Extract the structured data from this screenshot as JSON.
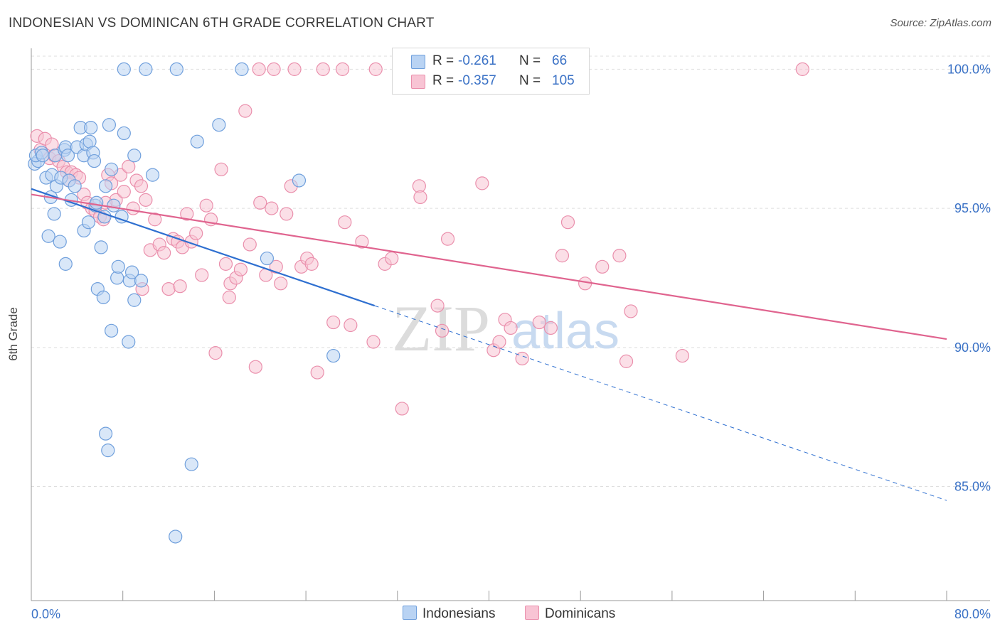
{
  "header": {
    "title": "INDONESIAN VS DOMINICAN 6TH GRADE CORRELATION CHART",
    "source": "Source: ZipAtlas.com"
  },
  "colors": {
    "indonesians_fill": "#b9d3f3",
    "indonesians_stroke": "#6f9fdc",
    "indonesians_line": "#2e6fd0",
    "dominicans_fill": "#f8c4d4",
    "dominicans_stroke": "#ea8fac",
    "dominicans_line": "#e0648f",
    "tick_text": "#3b72c6",
    "grid": "#dedede"
  },
  "legend": {
    "rows": [
      {
        "series": "Indonesians",
        "r_label": "R =",
        "r_value": "-0.261",
        "n_label": "N =",
        "n_value": "66"
      },
      {
        "series": "Dominicans",
        "r_label": "R =",
        "r_value": "-0.357",
        "n_label": "N =",
        "n_value": "105"
      }
    ],
    "bottom": [
      "Indonesians",
      "Dominicans"
    ]
  },
  "watermark": {
    "zip": "ZIP",
    "atlas": "atlas"
  },
  "chart_data": {
    "type": "scatter",
    "title": "INDONESIAN VS DOMINICAN 6TH GRADE CORRELATION CHART",
    "xlabel": "",
    "ylabel": "6th Grade",
    "xlim": [
      0,
      80
    ],
    "ylim": [
      80.9,
      100.7
    ],
    "x_tick_labels": [
      "0.0%",
      "80.0%"
    ],
    "y_ticks": [
      85,
      90,
      95,
      100
    ],
    "y_tick_labels": [
      "85.0%",
      "90.0%",
      "95.0%",
      "100.0%"
    ],
    "grid": "horizontal dashed",
    "legend_position": "top-center",
    "series": [
      {
        "name": "Indonesians",
        "r": -0.261,
        "n": 66,
        "trend": {
          "x0": 0,
          "y0": 95.7,
          "x1": 30,
          "y1": 91.5,
          "dashed_to_x": 80,
          "dashed_to_y": 84.5
        },
        "points": [
          [
            0.3,
            96.6
          ],
          [
            0.6,
            96.7
          ],
          [
            0.4,
            96.9
          ],
          [
            0.9,
            97.0
          ],
          [
            1.0,
            96.9
          ],
          [
            1.3,
            96.1
          ],
          [
            1.8,
            96.2
          ],
          [
            2.1,
            96.9
          ],
          [
            1.7,
            95.4
          ],
          [
            2.2,
            95.8
          ],
          [
            2.6,
            96.1
          ],
          [
            2.9,
            97.1
          ],
          [
            3.0,
            97.2
          ],
          [
            2.0,
            94.8
          ],
          [
            3.2,
            96.9
          ],
          [
            3.3,
            96.0
          ],
          [
            3.5,
            95.3
          ],
          [
            3.8,
            95.8
          ],
          [
            4.0,
            97.2
          ],
          [
            4.3,
            97.9
          ],
          [
            4.6,
            96.9
          ],
          [
            4.8,
            97.3
          ],
          [
            5.1,
            97.4
          ],
          [
            5.2,
            97.9
          ],
          [
            5.4,
            97.0
          ],
          [
            5.5,
            96.7
          ],
          [
            5.6,
            95.1
          ],
          [
            5.7,
            95.2
          ],
          [
            6.1,
            93.6
          ],
          [
            6.4,
            94.7
          ],
          [
            6.5,
            95.8
          ],
          [
            6.8,
            98.0
          ],
          [
            7.0,
            96.4
          ],
          [
            7.2,
            95.1
          ],
          [
            7.5,
            92.5
          ],
          [
            7.6,
            92.9
          ],
          [
            7.9,
            94.7
          ],
          [
            8.1,
            100.0
          ],
          [
            8.1,
            97.7
          ],
          [
            8.5,
            90.2
          ],
          [
            8.6,
            92.4
          ],
          [
            8.8,
            92.7
          ],
          [
            9.0,
            96.9
          ],
          [
            9.0,
            91.7
          ],
          [
            9.6,
            92.4
          ],
          [
            10.0,
            100.0
          ],
          [
            10.6,
            96.2
          ],
          [
            12.7,
            100.0
          ],
          [
            14.5,
            97.4
          ],
          [
            16.4,
            98.0
          ],
          [
            18.4,
            100.0
          ],
          [
            20.6,
            93.2
          ],
          [
            1.5,
            94.0
          ],
          [
            2.5,
            93.8
          ],
          [
            4.6,
            94.2
          ],
          [
            5.0,
            94.5
          ],
          [
            3.0,
            93.0
          ],
          [
            5.8,
            92.1
          ],
          [
            6.3,
            91.8
          ],
          [
            7.0,
            90.6
          ],
          [
            6.5,
            86.9
          ],
          [
            6.7,
            86.3
          ],
          [
            14.0,
            85.8
          ],
          [
            12.6,
            83.2
          ],
          [
            26.4,
            89.7
          ],
          [
            23.4,
            96.0
          ]
        ]
      },
      {
        "name": "Dominicans",
        "r": -0.357,
        "n": 105,
        "trend": {
          "x0": 0,
          "y0": 95.5,
          "x1": 80,
          "y1": 90.3
        },
        "points": [
          [
            0.5,
            97.6
          ],
          [
            0.8,
            97.1
          ],
          [
            1.2,
            97.5
          ],
          [
            1.6,
            96.8
          ],
          [
            2.0,
            96.9
          ],
          [
            2.4,
            96.7
          ],
          [
            2.8,
            96.5
          ],
          [
            3.1,
            96.3
          ],
          [
            3.5,
            96.3
          ],
          [
            3.9,
            96.2
          ],
          [
            4.2,
            96.1
          ],
          [
            4.6,
            95.5
          ],
          [
            4.9,
            95.2
          ],
          [
            5.3,
            95.0
          ],
          [
            5.6,
            94.9
          ],
          [
            6.0,
            94.7
          ],
          [
            6.3,
            94.6
          ],
          [
            6.7,
            96.2
          ],
          [
            7.0,
            95.9
          ],
          [
            7.4,
            95.3
          ],
          [
            7.8,
            96.2
          ],
          [
            8.1,
            95.6
          ],
          [
            8.5,
            96.5
          ],
          [
            8.9,
            95.0
          ],
          [
            9.2,
            96.0
          ],
          [
            9.6,
            95.8
          ],
          [
            10.0,
            95.3
          ],
          [
            10.4,
            93.5
          ],
          [
            10.8,
            94.6
          ],
          [
            11.2,
            93.7
          ],
          [
            11.6,
            93.4
          ],
          [
            12.0,
            92.1
          ],
          [
            12.4,
            93.9
          ],
          [
            12.8,
            93.8
          ],
          [
            13.2,
            93.6
          ],
          [
            13.6,
            94.8
          ],
          [
            14.0,
            93.8
          ],
          [
            14.4,
            94.1
          ],
          [
            14.9,
            92.6
          ],
          [
            15.3,
            95.1
          ],
          [
            15.7,
            94.6
          ],
          [
            16.1,
            89.8
          ],
          [
            16.6,
            96.4
          ],
          [
            17.0,
            93.0
          ],
          [
            17.4,
            92.3
          ],
          [
            17.9,
            92.5
          ],
          [
            18.3,
            92.8
          ],
          [
            18.7,
            98.5
          ],
          [
            19.1,
            93.7
          ],
          [
            19.6,
            89.3
          ],
          [
            20.0,
            95.2
          ],
          [
            20.5,
            92.6
          ],
          [
            21.0,
            95.0
          ],
          [
            21.4,
            92.9
          ],
          [
            21.8,
            92.3
          ],
          [
            22.3,
            94.8
          ],
          [
            22.7,
            95.8
          ],
          [
            23.6,
            92.9
          ],
          [
            24.1,
            93.2
          ],
          [
            24.5,
            93.0
          ],
          [
            25.0,
            89.1
          ],
          [
            25.5,
            100.0
          ],
          [
            26.4,
            90.9
          ],
          [
            27.4,
            94.5
          ],
          [
            27.9,
            90.8
          ],
          [
            28.9,
            93.8
          ],
          [
            29.9,
            90.2
          ],
          [
            30.9,
            93.0
          ],
          [
            31.5,
            93.2
          ],
          [
            32.4,
            87.8
          ],
          [
            33.9,
            95.8
          ],
          [
            34.0,
            95.4
          ],
          [
            35.5,
            91.5
          ],
          [
            35.9,
            90.6
          ],
          [
            36.4,
            93.9
          ],
          [
            38.4,
            100.0
          ],
          [
            39.4,
            95.9
          ],
          [
            40.4,
            89.9
          ],
          [
            40.9,
            90.2
          ],
          [
            41.4,
            91.0
          ],
          [
            41.9,
            90.7
          ],
          [
            42.9,
            89.6
          ],
          [
            44.4,
            90.9
          ],
          [
            45.4,
            90.7
          ],
          [
            46.4,
            93.3
          ],
          [
            46.9,
            94.5
          ],
          [
            48.4,
            92.3
          ],
          [
            49.9,
            92.9
          ],
          [
            51.4,
            93.3
          ],
          [
            52.4,
            91.3
          ],
          [
            52.0,
            89.5
          ],
          [
            56.9,
            89.7
          ],
          [
            67.4,
            100.0
          ],
          [
            19.9,
            100.0
          ],
          [
            21.2,
            100.0
          ],
          [
            23.0,
            100.0
          ],
          [
            27.2,
            100.0
          ],
          [
            30.1,
            100.0
          ],
          [
            34.6,
            100.0
          ],
          [
            1.8,
            97.3
          ],
          [
            3.3,
            96.0
          ],
          [
            6.5,
            95.2
          ],
          [
            9.7,
            92.1
          ],
          [
            13.0,
            92.2
          ],
          [
            17.3,
            91.8
          ]
        ]
      }
    ]
  }
}
